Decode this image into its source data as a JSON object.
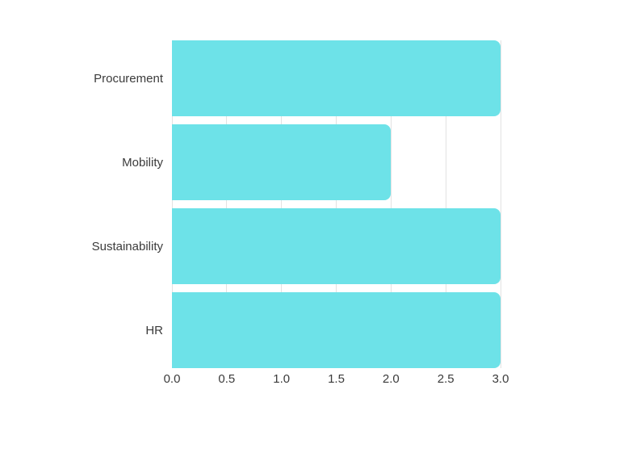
{
  "chart_data": {
    "type": "bar",
    "orientation": "horizontal",
    "title": "",
    "xlabel": "",
    "ylabel": "",
    "categories": [
      "Procurement",
      "Mobility",
      "Sustainability",
      "HR"
    ],
    "values": [
      3.0,
      2.0,
      3.0,
      3.0
    ],
    "x_ticks": [
      0.0,
      0.5,
      1.0,
      1.5,
      2.0,
      2.5,
      3.0
    ],
    "x_tick_labels": [
      "0.0",
      "0.5",
      "1.0",
      "1.5",
      "2.0",
      "2.5",
      "3.0"
    ],
    "xlim": [
      0,
      3
    ],
    "grid": true,
    "grid_axis": "x",
    "legend": false,
    "bar_corner_radius_px": 8,
    "colors": {
      "bar": "#6DE2E8",
      "gridline": "#e2e2e2",
      "label_text": "#3b3b3b",
      "background": "#ffffff"
    }
  }
}
